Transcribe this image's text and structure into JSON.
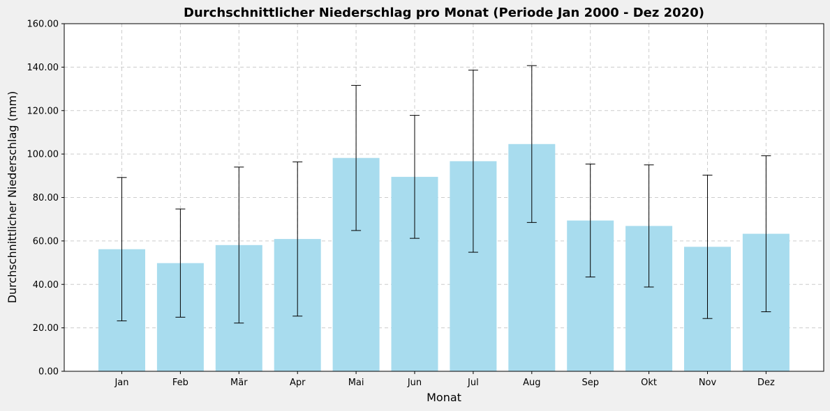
{
  "chart_data": {
    "type": "bar",
    "title": "Durchschnittlicher Niederschlag pro Monat (Periode Jan 2000 - Dez 2020)",
    "xlabel": "Monat",
    "ylabel": "Durchschnittlicher Niederschlag (mm)",
    "categories": [
      "Jan",
      "Feb",
      "Mär",
      "Apr",
      "Mai",
      "Jun",
      "Jul",
      "Aug",
      "Sep",
      "Okt",
      "Nov",
      "Dez"
    ],
    "values": [
      56.2,
      49.8,
      58.1,
      60.9,
      98.2,
      89.5,
      96.7,
      104.6,
      69.4,
      66.9,
      57.3,
      63.3
    ],
    "error": [
      33.0,
      24.9,
      35.9,
      35.5,
      33.4,
      28.3,
      41.9,
      36.1,
      26.0,
      28.1,
      33.0,
      35.9
    ],
    "ylim": [
      0,
      160
    ],
    "yticks": [
      "0.00",
      "20.00",
      "40.00",
      "60.00",
      "80.00",
      "100.00",
      "120.00",
      "140.00",
      "160.00"
    ],
    "grid": true,
    "bar_color": "#a8dcee",
    "errorbar_color": "#000000"
  }
}
